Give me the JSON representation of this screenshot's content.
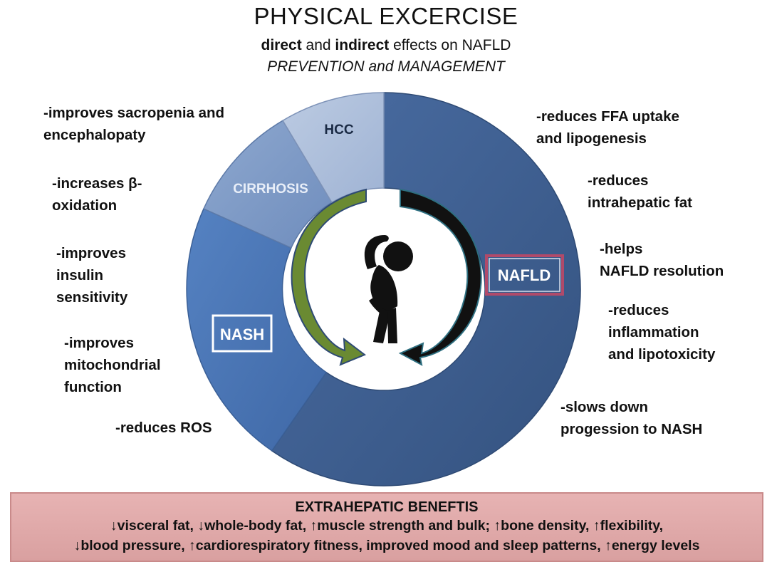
{
  "header": {
    "title": "PHYSICAL EXCERCISE",
    "subtitle_bold1": "direct",
    "subtitle_mid1": " and ",
    "subtitle_bold2": "indirect",
    "subtitle_tail": " effects on NAFLD",
    "subtitle2": "PREVENTION and MANAGEMENT"
  },
  "segments": {
    "nafld": "NAFLD",
    "nash": "NASH",
    "cirrhosis": "CIRRHOSIS",
    "hcc": "HCC"
  },
  "left_notes": [
    [
      "-improves sacropenia and",
      "encephalopaty"
    ],
    [
      "-increases β-",
      "oxidation"
    ],
    [
      "-improves",
      "insulin",
      "sensitivity"
    ],
    [
      "-improves",
      "mitochondrial",
      "function"
    ],
    [
      "-reduces ROS"
    ]
  ],
  "right_notes": [
    [
      "-reduces FFA uptake",
      "and lipogenesis"
    ],
    [
      "-reduces",
      "intrahepatic fat"
    ],
    [
      "-helps",
      "NAFLD resolution"
    ],
    [
      "-reduces",
      "inflammation",
      "and lipotoxicity"
    ],
    [
      "-slows down",
      "progession to NASH"
    ]
  ],
  "benefits": {
    "title": "EXTRAHEPATIC BENEFTIS",
    "line1": "↓visceral fat, ↓whole-body fat, ↑muscle strength and bulk; ↑bone density, ↑flexibility,",
    "line2": "↓blood pressure, ↑cardiorespiratory fitness, improved mood and sleep patterns, ↑energy levels"
  },
  "colors": {
    "nafld": "#3d5f93",
    "nash": "#4a76b8",
    "cirrhosis": "#7d99c4",
    "hcc": "#a9bcd9",
    "nafld_box": "#b04a6a",
    "benefits_bg": "#e0aaaa",
    "arrow_green": "#6a8a32",
    "arrow_black": "#111111"
  }
}
